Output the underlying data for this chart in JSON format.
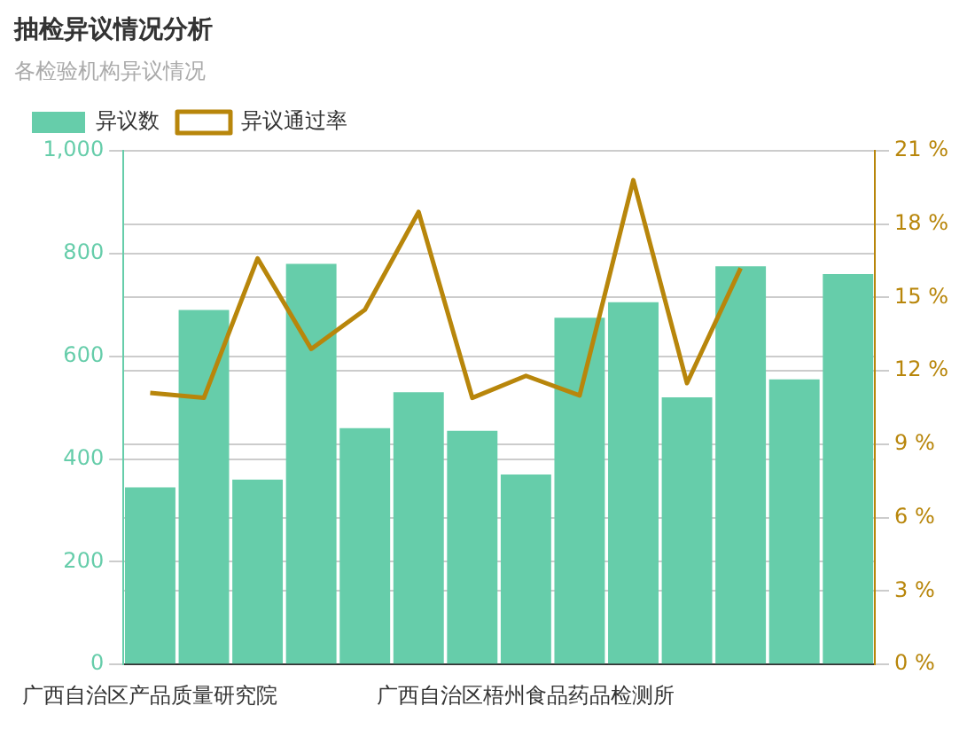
{
  "chart_data": {
    "type": "bar",
    "title": "抽检异议情况分析",
    "subtitle": "各检验机构异议情况",
    "categories": [
      "广西自治区产品质量研究院",
      null,
      null,
      null,
      null,
      null,
      null,
      "广西自治区梧州食品药品检测所",
      null,
      null,
      null,
      null,
      null,
      null
    ],
    "series": [
      {
        "name": "异议数",
        "color": "#66cdaa",
        "values": [
          345,
          690,
          360,
          780,
          460,
          530,
          455,
          370,
          675,
          705,
          520,
          775,
          555,
          760
        ]
      },
      {
        "name": "异议通过率",
        "type": "line",
        "axis": "y2",
        "color": "#b8860b",
        "values": [
          11.1,
          10.9,
          16.6,
          12.9,
          14.5,
          18.5,
          10.9,
          11.8,
          11.0,
          19.8,
          11.5,
          16.2,
          null,
          null
        ]
      }
    ],
    "ylim": [
      0,
      1000
    ],
    "yticks": [
      0,
      200,
      400,
      600,
      800,
      {
        "value": 1000,
        "label": "1,000"
      }
    ],
    "y2lim": [
      0,
      21
    ],
    "y2ticks": [
      {
        "value": 0,
        "label": "0 %"
      },
      {
        "value": 3,
        "label": "3 %"
      },
      {
        "value": 6,
        "label": "6 %"
      },
      {
        "value": 9,
        "label": "9 %"
      },
      {
        "value": 12,
        "label": "12 %"
      },
      {
        "value": 15,
        "label": "15 %"
      },
      {
        "value": 18,
        "label": "18 %"
      },
      {
        "value": 21,
        "label": "21 %"
      }
    ],
    "grid": "y",
    "legend": "top left",
    "marker": "none",
    "line_style": "solid"
  }
}
